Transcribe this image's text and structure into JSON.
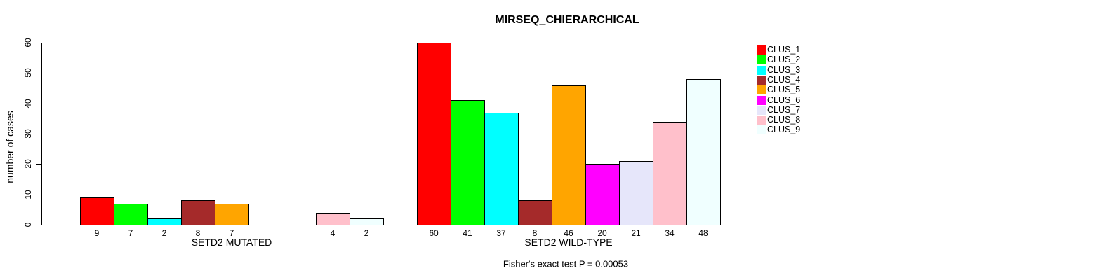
{
  "chart_data": {
    "type": "bar",
    "title": "MIRSEQ_CHIERARCHICAL",
    "ylabel": "number of cases",
    "xlabel": "",
    "ylim": [
      0,
      60
    ],
    "yticks": [
      0,
      10,
      20,
      30,
      40,
      50,
      60
    ],
    "grid": false,
    "legend_position": "right",
    "annotation": "Fisher's exact test P = 0.00053",
    "categories": [
      "CLUS_1",
      "CLUS_2",
      "CLUS_3",
      "CLUS_4",
      "CLUS_5",
      "CLUS_6",
      "CLUS_7",
      "CLUS_8",
      "CLUS_9"
    ],
    "colors": [
      "#FF0000",
      "#00FF00",
      "#00FFFF",
      "#A52A2A",
      "#FFA500",
      "#FF00FF",
      "#E6E6FA",
      "#FFC0CB",
      "#F0FFFF"
    ],
    "groups": [
      {
        "label": "SETD2 MUTATED",
        "values": [
          9,
          7,
          2,
          8,
          7,
          0,
          0,
          4,
          2
        ]
      },
      {
        "label": "SETD2 WILD-TYPE",
        "values": [
          60,
          41,
          37,
          8,
          46,
          20,
          21,
          34,
          48
        ]
      }
    ]
  }
}
